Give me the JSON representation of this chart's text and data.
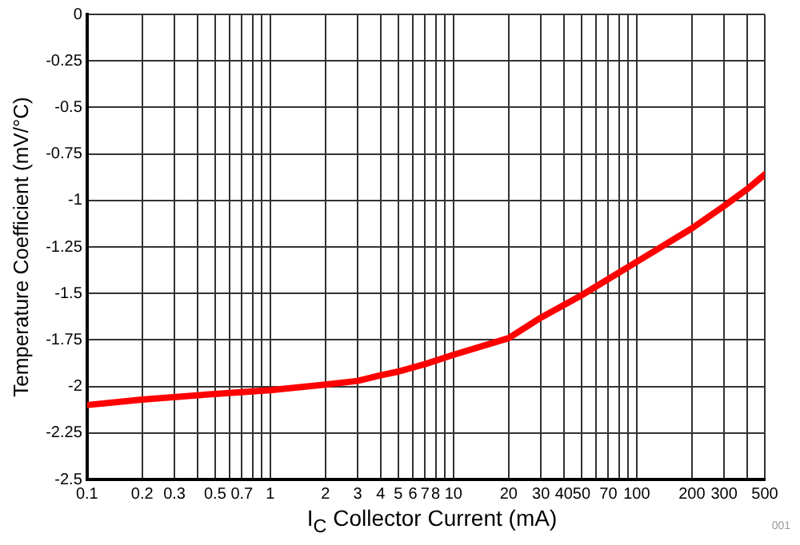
{
  "chart_data": {
    "type": "line",
    "xlabel": "I$_{C}$ Collector Current (mA)",
    "ylabel": "Temperature Coefficient (mV/°C)",
    "annotations": [
      "001"
    ],
    "x": [
      0.1,
      0.2,
      0.5,
      1,
      2,
      3,
      4,
      5,
      7,
      10,
      20,
      30,
      50,
      100,
      200,
      300,
      400,
      500
    ],
    "series": [
      {
        "color": "#ff0000",
        "values": [
          -2.1,
          -2.07,
          -2.04,
          -2.02,
          -1.99,
          -1.97,
          -1.94,
          -1.92,
          -1.88,
          -1.83,
          -1.74,
          -1.63,
          -1.51,
          -1.33,
          -1.15,
          -1.03,
          -0.94,
          -0.86
        ]
      }
    ],
    "xlim": [
      0.1,
      500
    ],
    "ylim": [
      -2.5,
      0
    ],
    "log": "x",
    "xticks": [
      0.1,
      0.2,
      0.3,
      {
        "value": 0.4,
        "label": null
      },
      0.5,
      {
        "value": 0.6,
        "label": null
      },
      0.7,
      {
        "value": 0.8,
        "label": null
      },
      {
        "value": 0.9,
        "label": null
      },
      1,
      2,
      3,
      4,
      5,
      6,
      7,
      8,
      {
        "value": 9,
        "label": null
      },
      10,
      20,
      30,
      40,
      50,
      {
        "value": 60,
        "label": null
      },
      70,
      {
        "value": 80,
        "label": null
      },
      {
        "value": 90,
        "label": null
      },
      100,
      200,
      300,
      {
        "value": 400,
        "label": null
      },
      500
    ],
    "yticks": [
      -2.5,
      -2.25,
      -2,
      -1.75,
      -1.5,
      -1.25,
      -1,
      -0.75,
      -0.5,
      -0.25,
      0
    ],
    "grid": true,
    "legend": false,
    "marker": "none",
    "line_style": "solid"
  }
}
